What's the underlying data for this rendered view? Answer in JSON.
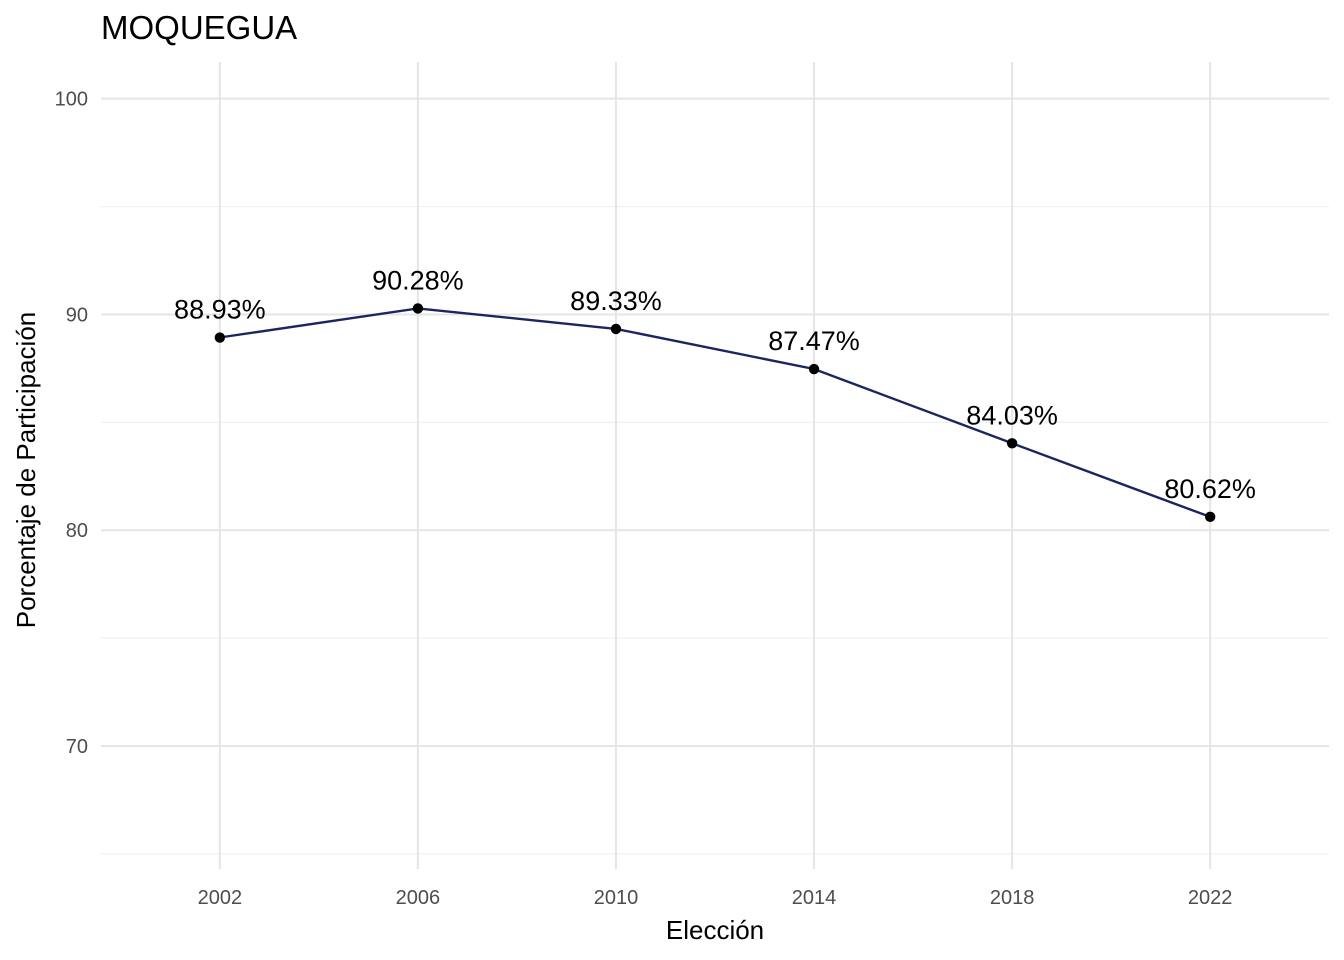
{
  "chart_data": {
    "type": "line",
    "title": "MOQUEGUA",
    "xlabel": "Elección",
    "ylabel": "Porcentaje de Participación",
    "x": [
      2002,
      2006,
      2010,
      2014,
      2018,
      2022
    ],
    "x_tick_labels": [
      "2002",
      "2006",
      "2010",
      "2014",
      "2018",
      "2022"
    ],
    "y_ticks": [
      70,
      80,
      90,
      100
    ],
    "y_tick_labels": [
      "70",
      "80",
      "90",
      "100"
    ],
    "ylim": [
      64.3,
      101.7
    ],
    "xlim": [
      1999.6,
      2024.4
    ],
    "grid": true,
    "series": [
      {
        "values": [
          88.93,
          90.28,
          89.33,
          87.47,
          84.03,
          80.62
        ],
        "labels": [
          "88.93%",
          "90.28%",
          "89.33%",
          "87.47%",
          "84.03%",
          "80.62%"
        ],
        "color": "#1a2660"
      }
    ],
    "point_color": "#000000"
  }
}
